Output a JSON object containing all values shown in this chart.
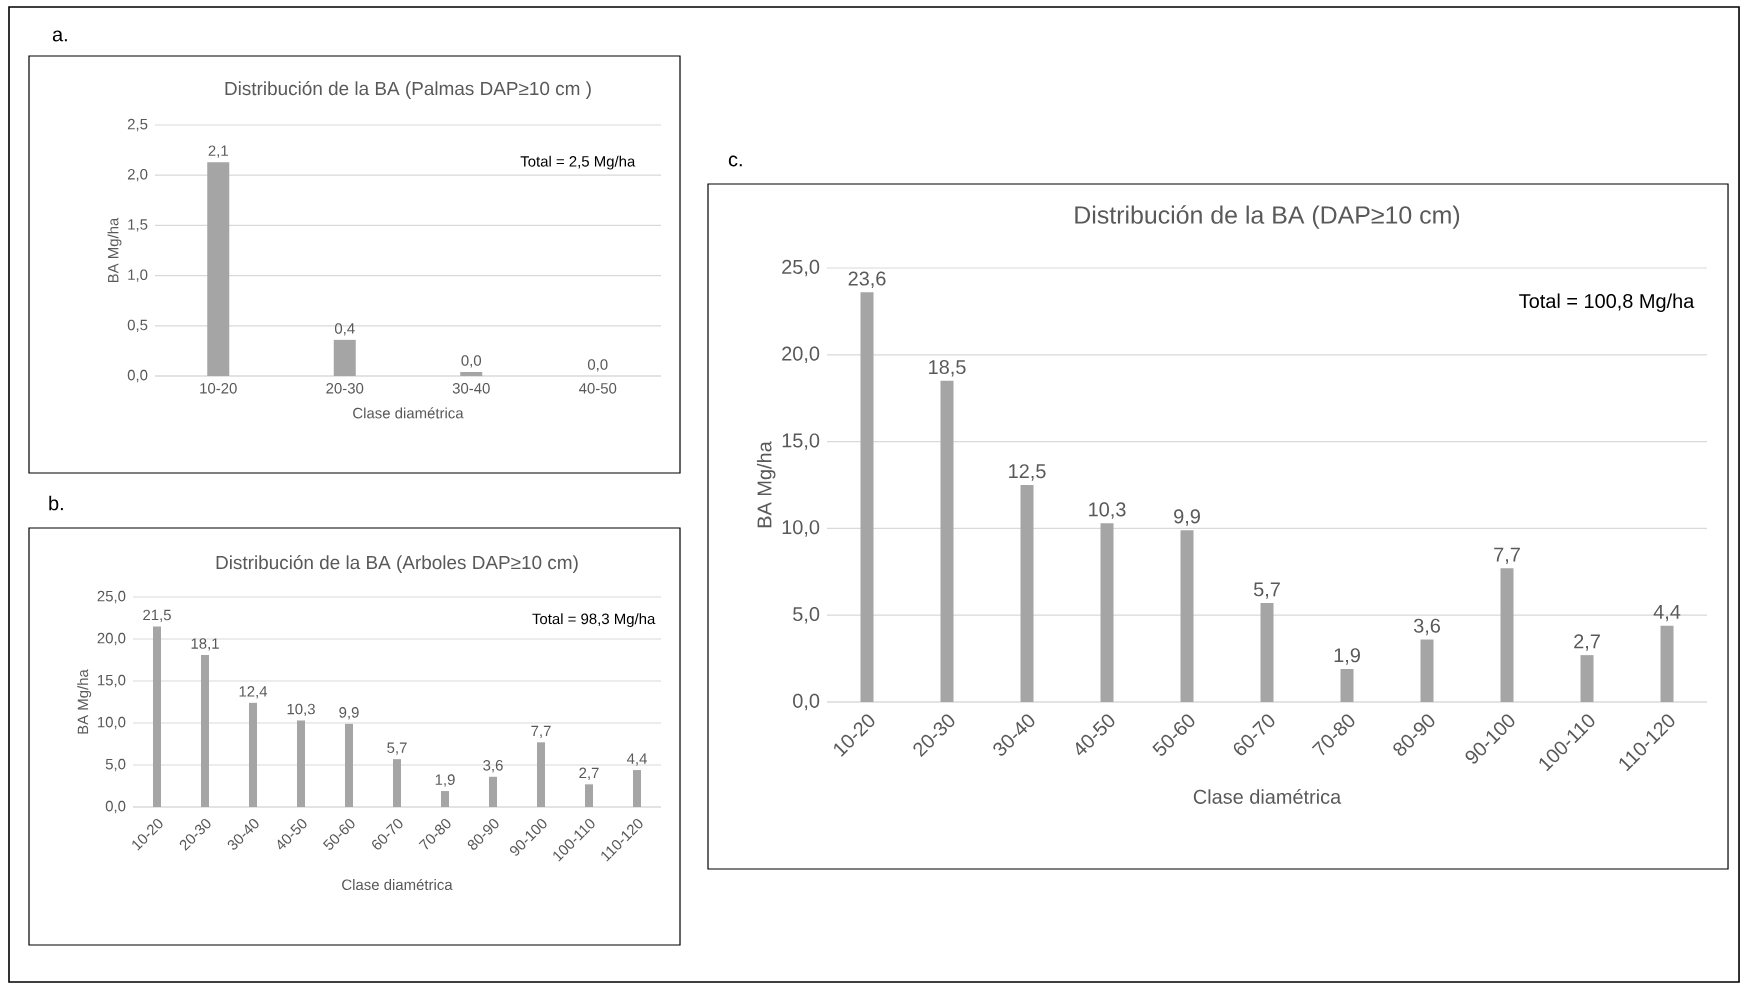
{
  "chart_data": [
    {
      "type": "bar",
      "title": "Distribución de la BA (Palmas DAP≥10 cm )",
      "xlabel": "Clase diamétrica",
      "ylabel": "BA Mg/ha",
      "categories": [
        "10-20",
        "20-30",
        "30-40",
        "40-50"
      ],
      "values": [
        2.13,
        0.36,
        0.04,
        0.0
      ],
      "value_labels": [
        "2,1",
        "0,4",
        "0,0",
        "0,0"
      ],
      "color": "#a5a5a5",
      "ylim": [
        0,
        2.5
      ],
      "yticks": [
        {
          "value": 0,
          "label": "0,0"
        },
        {
          "value": 0.5,
          "label": "0,5"
        },
        {
          "value": 1,
          "label": "1,0"
        },
        {
          "value": 1.5,
          "label": "1,5"
        },
        {
          "value": 2,
          "label": "2,0"
        },
        {
          "value": 2.5,
          "label": "2,5"
        }
      ],
      "grid": "y",
      "annotations": [
        "Total = 2,5 Mg/ha",
        "a."
      ]
    },
    {
      "type": "bar",
      "title": "Distribución de la BA (Arboles DAP≥10 cm)",
      "xlabel": "Clase diamétrica",
      "ylabel": "BA Mg/ha",
      "categories": [
        "10-20",
        "20-30",
        "30-40",
        "40-50",
        "50-60",
        "60-70",
        "70-80",
        "80-90",
        "90-100",
        "100-110",
        "110-120"
      ],
      "values": [
        21.5,
        18.1,
        12.4,
        10.3,
        9.9,
        5.7,
        1.9,
        3.6,
        7.7,
        2.7,
        4.4
      ],
      "value_labels": [
        "21,5",
        "18,1",
        "12,4",
        "10,3",
        "9,9",
        "5,7",
        "1,9",
        "3,6",
        "7,7",
        "2,7",
        "4,4"
      ],
      "color": "#a5a5a5",
      "ylim": [
        0,
        25
      ],
      "yticks": [
        {
          "value": 0,
          "label": "0,0"
        },
        {
          "value": 5,
          "label": "5,0"
        },
        {
          "value": 10,
          "label": "10,0"
        },
        {
          "value": 15,
          "label": "15,0"
        },
        {
          "value": 20,
          "label": "20,0"
        },
        {
          "value": 25,
          "label": "25,0"
        }
      ],
      "grid": "y",
      "annotations": [
        "Total = 98,3 Mg/ha",
        "b."
      ]
    },
    {
      "type": "bar",
      "title": "Distribución de la BA  (DAP≥10 cm)",
      "xlabel": "Clase diamétrica",
      "ylabel": "BA Mg/ha",
      "categories": [
        "10-20",
        "20-30",
        "30-40",
        "40-50",
        "50-60",
        "60-70",
        "70-80",
        "80-90",
        "90-100",
        "100-110",
        "110-120"
      ],
      "values": [
        23.6,
        18.5,
        12.5,
        10.3,
        9.9,
        5.7,
        1.9,
        3.6,
        7.7,
        2.7,
        4.4
      ],
      "value_labels": [
        "23,6",
        "18,5",
        "12,5",
        "10,3",
        "9,9",
        "5,7",
        "1,9",
        "3,6",
        "7,7",
        "2,7",
        "4,4"
      ],
      "color": "#a5a5a5",
      "ylim": [
        0,
        25
      ],
      "yticks": [
        {
          "value": 0,
          "label": "0,0"
        },
        {
          "value": 5,
          "label": "5,0"
        },
        {
          "value": 10,
          "label": "10,0"
        },
        {
          "value": 15,
          "label": "15,0"
        },
        {
          "value": 20,
          "label": "20,0"
        },
        {
          "value": 25,
          "label": "25,0"
        }
      ],
      "grid": "y",
      "annotations": [
        "Total = 100,8 Mg/ha",
        "c."
      ]
    }
  ]
}
